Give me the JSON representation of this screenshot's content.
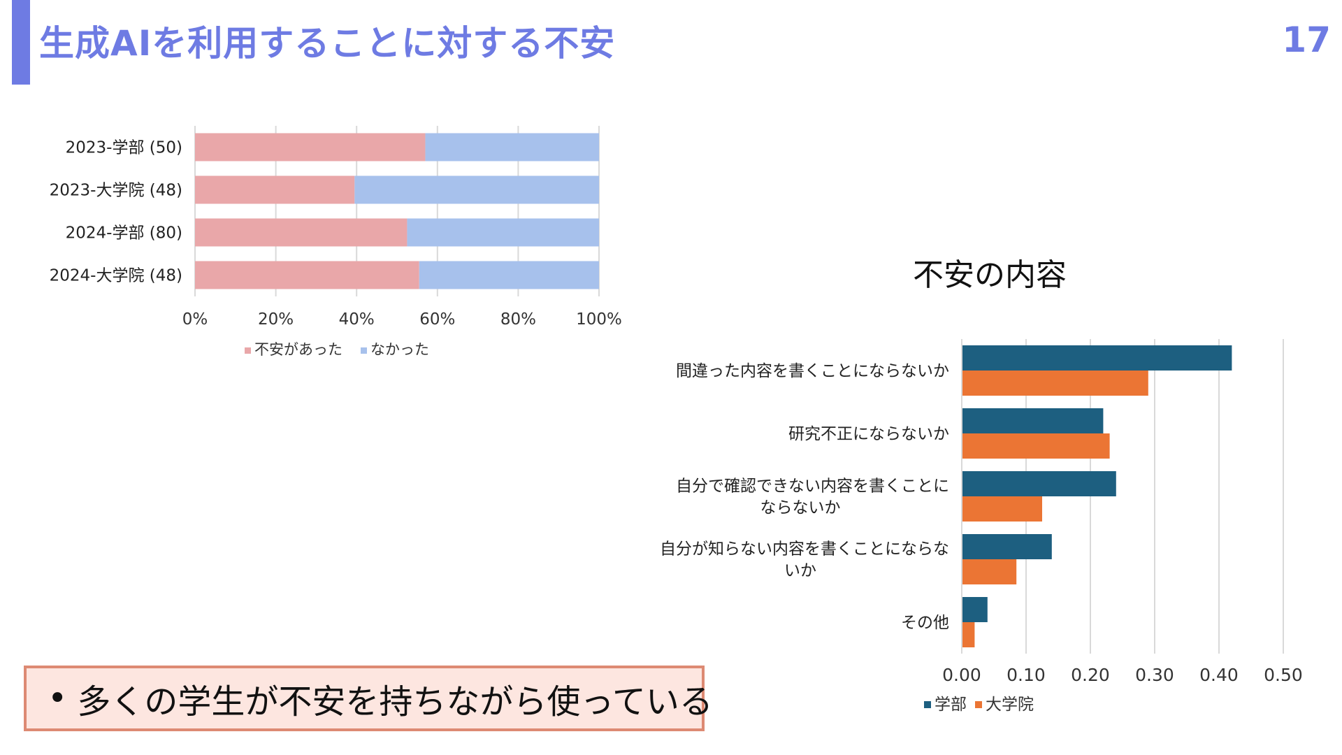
{
  "slide": {
    "title": "生成AIを利用することに対する不安",
    "page_number": "17",
    "callout": "多くの学生が不安を持ちながら使っている",
    "bullet": "•"
  },
  "colors": {
    "accent": "#6e7be3",
    "anxiety_yes": "#e9a7a9",
    "anxiety_no": "#a7c1ec",
    "undergrad": "#1d5f80",
    "grad": "#eb7534",
    "callout_bg": "#fde6e0",
    "callout_border": "#dd8a73"
  },
  "chart_data": [
    {
      "type": "bar",
      "orientation": "horizontal",
      "stacked": "percent",
      "categories": [
        "2023-学部 (50)",
        "2023-大学院 (48)",
        "2024-学部 (80)",
        "2024-大学院 (48)"
      ],
      "series": [
        {
          "name": "不安があった",
          "values": [
            0.57,
            0.395,
            0.525,
            0.555
          ]
        },
        {
          "name": "なかった",
          "values": [
            0.43,
            0.605,
            0.475,
            0.445
          ]
        }
      ],
      "xticks": [
        "0%",
        "20%",
        "40%",
        "60%",
        "80%",
        "100%"
      ],
      "xlim": [
        0,
        1
      ],
      "grid": true,
      "legend": "bottom"
    },
    {
      "type": "bar",
      "orientation": "horizontal",
      "title": "不安の内容",
      "categories": [
        [
          "間違った内容を書くことにならないか"
        ],
        [
          "研究不正にならないか"
        ],
        [
          "自分で確認できない内容を書くことに",
          "ならないか"
        ],
        [
          "自分が知らない内容を書くことにならな",
          "いか"
        ],
        [
          "その他"
        ]
      ],
      "series": [
        {
          "name": "学部",
          "values": [
            0.42,
            0.22,
            0.24,
            0.14,
            0.04
          ]
        },
        {
          "name": "大学院",
          "values": [
            0.29,
            0.23,
            0.125,
            0.085,
            0.02
          ]
        }
      ],
      "xticks": [
        "0.00",
        "0.10",
        "0.20",
        "0.30",
        "0.40",
        "0.50"
      ],
      "xlim": [
        0,
        0.5
      ],
      "grid": true,
      "legend": "bottom"
    }
  ]
}
